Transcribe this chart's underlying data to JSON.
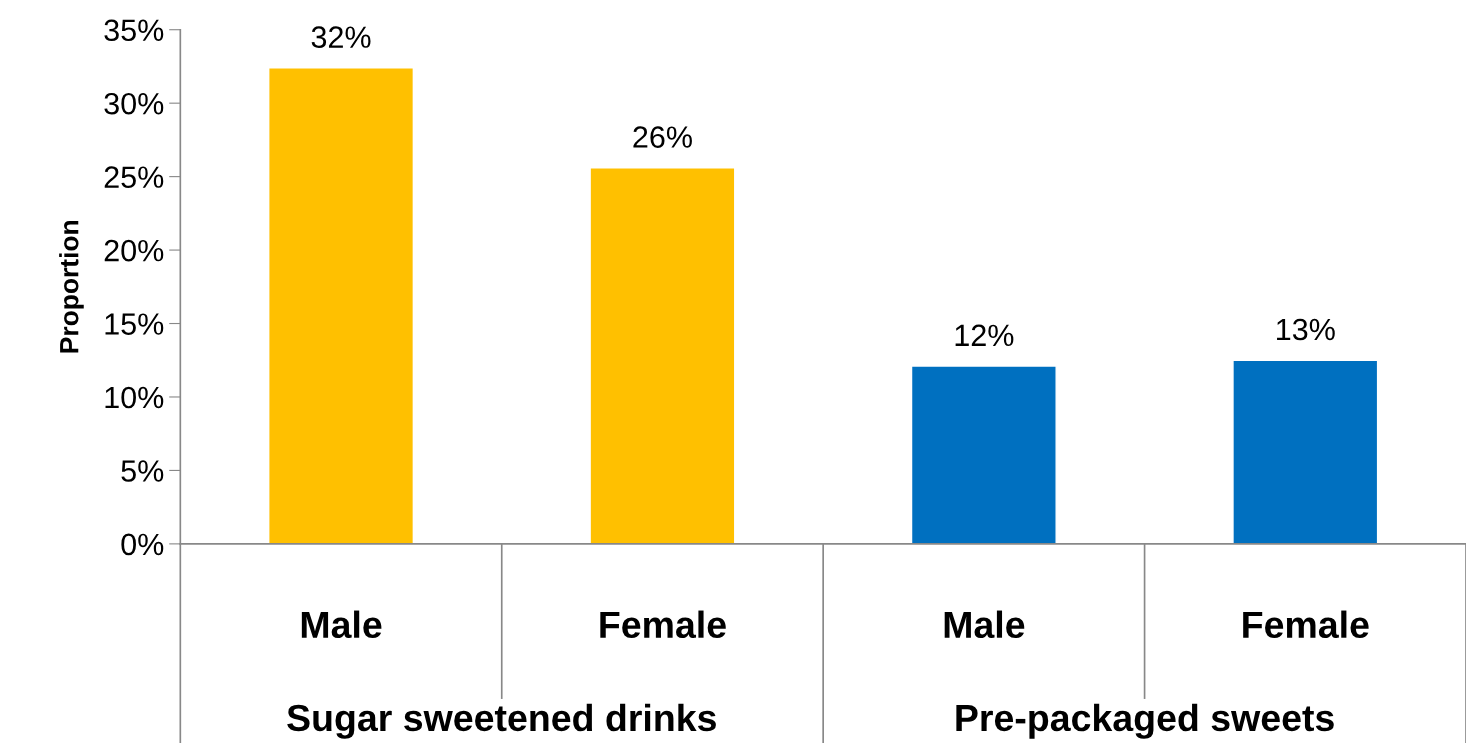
{
  "chart_data": {
    "type": "bar",
    "categories": [
      "Male",
      "Female",
      "Male",
      "Female"
    ],
    "values": [
      32.4,
      25.6,
      12.1,
      12.5
    ],
    "value_labels": [
      "32%",
      "26%",
      "12%",
      "13%"
    ],
    "colors": [
      "#ffc000",
      "#ffc000",
      "#0070c0",
      "#0070c0"
    ],
    "ylabel": "Proportion",
    "ylim": [
      0,
      35
    ],
    "yticks": [
      {
        "value": 0,
        "label": "0%"
      },
      {
        "value": 5,
        "label": "5%"
      },
      {
        "value": 10,
        "label": "10%"
      },
      {
        "value": 15,
        "label": "15%"
      },
      {
        "value": 20,
        "label": "20%"
      },
      {
        "value": 25,
        "label": "25%"
      },
      {
        "value": 30,
        "label": "30%"
      },
      {
        "value": 35,
        "label": "35%"
      }
    ],
    "annotations": [
      "Sugar sweetened drinks",
      "Pre-packaged sweets"
    ],
    "grid": false,
    "legend": false
  }
}
